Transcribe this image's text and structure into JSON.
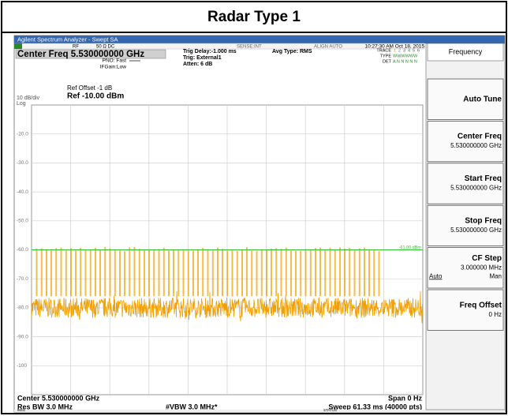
{
  "title": "Radar Type 1",
  "window_title": "Agilent Spectrum Analyzer - Swept SA",
  "status_bar": {
    "rf": "RF",
    "impedance": "50 Ω  DC",
    "sense": "SENSE:INT",
    "align": "ALIGN AUTO",
    "datetime": "10:27:30 AM Oct 18, 2015"
  },
  "header": {
    "center_freq": "Center Freq 5.530000000 GHz",
    "pno": "PNO: Fast",
    "ifgain": "IFGain:Low",
    "trig_delay": "Trig Delay:-1.000 ms",
    "trig": "Trig: External1",
    "atten": "Atten: 6 dB",
    "avg_type": "Avg Type: RMS",
    "trace": "TRACE",
    "type": "TYPE",
    "det": "DET",
    "trace_nums": [
      "1",
      "2",
      "3",
      "4",
      "5",
      "6"
    ],
    "type_vals": "WWWWWW",
    "det_vals": "A N N N N N"
  },
  "plot": {
    "scale": "10 dB/div",
    "log": "Log",
    "ref_offset": "Ref Offset -1 dB",
    "ref_level": "Ref -10.00 dBm",
    "y_labels": [
      "-20.0",
      "-30.0",
      "-40.0",
      "-50.0",
      "-60.0",
      "-70.0",
      "-80.0",
      "-90.0",
      "-100"
    ],
    "display_line": "-61.00 dBm"
  },
  "footer": {
    "center": "Center 5.530000000 GHz",
    "res_bw": "Res BW 3.0 MHz",
    "vbw": "#VBW 3.0 MHz*",
    "span": "Span 0 Hz",
    "sweep": "Sweep  61.33 ms (40000 pts)"
  },
  "message_bar": {
    "msg": "MSG",
    "status": "STATUS"
  },
  "menu": {
    "title": "Frequency",
    "keys": [
      {
        "label": "Auto Tune"
      },
      {
        "label": "Center Freq",
        "value": "5.530000000 GHz"
      },
      {
        "label": "Start Freq",
        "value": "5.530000000 GHz"
      },
      {
        "label": "Stop Freq",
        "value": "5.530000000 GHz"
      },
      {
        "label": "CF Step",
        "value": "3.000000 MHz",
        "options": [
          "Auto",
          "Man"
        ]
      },
      {
        "label": "Freq Offset",
        "value": "0 Hz"
      }
    ]
  }
}
